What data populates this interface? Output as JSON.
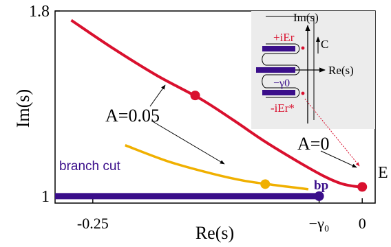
{
  "colors": {
    "red": "#d9102e",
    "gold": "#f0b000",
    "purple": "#3a0e8a",
    "inset_bg": "#ececec",
    "pink": "#e03a6a"
  },
  "chart_data": {
    "type": "line",
    "title": "",
    "xlabel": "Re(s)",
    "ylabel": "Im(s)",
    "xlim": [
      -0.285,
      0.012
    ],
    "ylim": [
      0.97,
      1.8
    ],
    "x_ticks": [
      {
        "value": -0.25,
        "label": "-0.25"
      },
      {
        "value": -0.04,
        "label": "−γ₀"
      },
      {
        "value": 0,
        "label": "0"
      }
    ],
    "y_ticks": [
      {
        "value": 1.8,
        "label": "1.8"
      },
      {
        "value": 1.0,
        "label": "1"
      }
    ],
    "series": [
      {
        "name": "A=0",
        "color": "#d9102e",
        "x": [
          -0.27,
          -0.23,
          -0.19,
          -0.15,
          -0.12,
          -0.09,
          -0.06,
          -0.035,
          -0.02,
          -0.008,
          0.0
        ],
        "y": [
          1.76,
          1.635,
          1.52,
          1.42,
          1.33,
          1.235,
          1.15,
          1.085,
          1.055,
          1.043,
          1.04
        ]
      },
      {
        "name": "A=0.05",
        "color": "#f0b000",
        "x": [
          -0.22,
          -0.18,
          -0.14,
          -0.11,
          -0.08,
          -0.05
        ],
        "y": [
          1.22,
          1.15,
          1.098,
          1.067,
          1.047,
          1.03
        ]
      },
      {
        "name": "branch cut",
        "color": "#3a0e8a",
        "x": [
          -0.285,
          -0.04
        ],
        "y": [
          1.0,
          1.0
        ]
      }
    ],
    "markers": [
      {
        "series": "A=0",
        "x": -0.155,
        "y": 1.435
      },
      {
        "series": "A=0.05",
        "x": -0.09,
        "y": 1.052
      },
      {
        "series": "A=0",
        "x": 0.0,
        "y": 1.04
      },
      {
        "series": "branch cut",
        "x": -0.04,
        "y": 1.0
      }
    ],
    "annotations": {
      "a0": "A=0",
      "a005": "A=0.05",
      "branch_cut": "branch cut",
      "bp": "bp",
      "e": "E"
    },
    "legend": "none",
    "grid": false
  },
  "inset": {
    "im_label": "Im(s)",
    "re_label": "Re(s)",
    "contour_label": "C",
    "plus_label": "+iEr",
    "minus_label": "-iEr*",
    "gamma_label": "−γ0"
  }
}
